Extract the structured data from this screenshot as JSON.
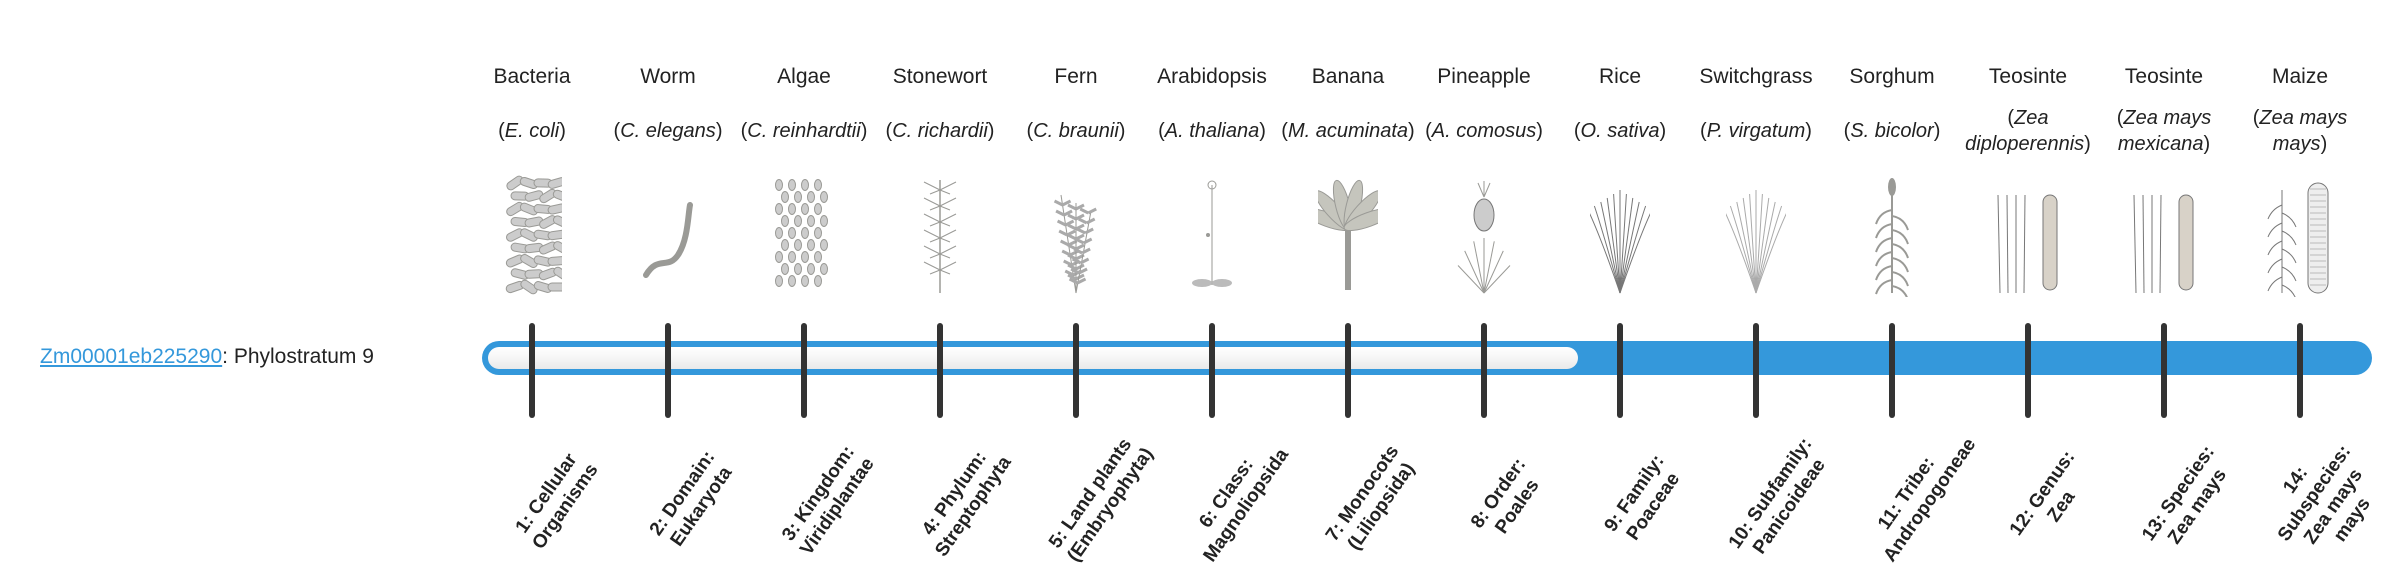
{
  "gene": {
    "id": "Zm00001eb225290",
    "suffix": ": Phylostratum 9"
  },
  "phylostratum": 9,
  "total_strata": 14,
  "colors": {
    "accent": "#3498db",
    "tick": "#333333",
    "track": "#f4f4f4"
  },
  "columns": [
    {
      "common": "Bacteria",
      "species": "E. coli",
      "icon": "bacteria-icon",
      "rank": "1: Cellular Organisms"
    },
    {
      "common": "Worm",
      "species": "C. elegans",
      "icon": "worm-icon",
      "rank": "2: Domain: Eukaryota"
    },
    {
      "common": "Algae",
      "species": "C. reinhardtii",
      "icon": "algae-icon",
      "rank": "3: Kingdom: Viridiplantae"
    },
    {
      "common": "Stonewort",
      "species": "C. richardii",
      "icon": "stonewort-icon",
      "rank": "4: Phylum: Streptophyta"
    },
    {
      "common": "Fern",
      "species": "C. braunii",
      "icon": "fern-icon",
      "rank": "5: Land plants (Embryophyta)"
    },
    {
      "common": "Arabidopsis",
      "species": "A. thaliana",
      "icon": "arabidopsis-icon",
      "rank": "6: Class: Magnoliopsida"
    },
    {
      "common": "Banana",
      "species": "M. acuminata",
      "icon": "banana-icon",
      "rank": "7: Monocots (Liliopsida)"
    },
    {
      "common": "Pineapple",
      "species": "A. comosus",
      "icon": "pineapple-icon",
      "rank": "8: Order: Poales"
    },
    {
      "common": "Rice",
      "species": "O. sativa",
      "icon": "rice-icon",
      "rank": "9: Family: Poaceae"
    },
    {
      "common": "Switchgrass",
      "species": "P. virgatum",
      "icon": "switchgrass-icon",
      "rank": "10: Subfamily: Panicoideae"
    },
    {
      "common": "Sorghum",
      "species": "S. bicolor",
      "icon": "sorghum-icon",
      "rank": "11: Tribe: Andropogoneae"
    },
    {
      "common": "Teosinte",
      "species": "Zea diploperennis",
      "icon": "teosinte-icon",
      "rank": "12: Genus: Zea"
    },
    {
      "common": "Teosinte",
      "species": "Zea mays mexicana",
      "icon": "teosinte-icon",
      "rank": "13: Species: Zea mays"
    },
    {
      "common": "Maize",
      "species": "Zea mays mays",
      "icon": "maize-icon",
      "rank": "14: Subspecies: Zea mays mays"
    }
  ]
}
